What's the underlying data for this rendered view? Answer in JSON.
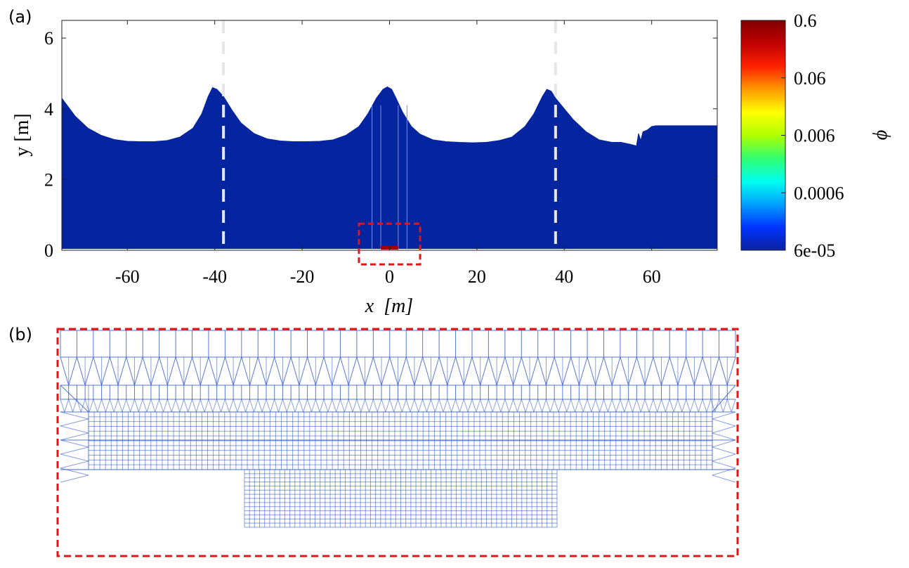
{
  "panels": {
    "a_label": "(a)",
    "b_label": "(b)"
  },
  "chart_data": [
    {
      "type": "area",
      "panel": "(a)",
      "title": "",
      "xlabel": "x  [m]",
      "ylabel": "y [m]",
      "xlim": [
        -75,
        75
      ],
      "ylim": [
        0,
        6.5
      ],
      "xticks": [
        "-60",
        "-40",
        "-20",
        "0",
        "20",
        "40",
        "60"
      ],
      "xtick_values": [
        -60,
        -40,
        -20,
        0,
        20,
        40,
        60
      ],
      "yticks": [
        "0",
        "2",
        "4",
        "6"
      ],
      "ytick_values": [
        0,
        2,
        4,
        6
      ],
      "grid": false,
      "series": [
        {
          "values_x": [
            -75,
            -72,
            -69,
            -66,
            -63,
            -60,
            -57,
            -54,
            -51,
            -48,
            -45,
            -43,
            -41.5,
            -40.5,
            -39.5,
            -38,
            -36,
            -34,
            -31,
            -28,
            -25,
            -22,
            -19,
            -16,
            -13,
            -10,
            -7,
            -5,
            -3,
            -1.5,
            -0.5,
            0.5,
            1.5,
            3,
            5,
            7,
            10,
            13,
            16,
            19,
            22,
            25,
            28,
            31,
            33,
            35,
            36,
            37,
            38,
            40,
            42,
            45,
            48,
            51,
            53,
            55,
            56.5,
            57,
            57.5,
            58,
            59,
            60,
            61,
            63,
            66,
            70,
            75
          ],
          "values_y": [
            4.3,
            3.8,
            3.45,
            3.25,
            3.13,
            3.08,
            3.07,
            3.07,
            3.1,
            3.2,
            3.45,
            3.85,
            4.35,
            4.6,
            4.55,
            4.35,
            3.95,
            3.6,
            3.3,
            3.15,
            3.09,
            3.07,
            3.07,
            3.08,
            3.12,
            3.25,
            3.5,
            3.85,
            4.3,
            4.55,
            4.62,
            4.55,
            4.3,
            3.9,
            3.5,
            3.28,
            3.12,
            3.07,
            3.05,
            3.04,
            3.05,
            3.1,
            3.2,
            3.5,
            3.85,
            4.35,
            4.55,
            4.5,
            4.3,
            4.0,
            3.7,
            3.35,
            3.12,
            3.05,
            3.05,
            3.0,
            2.95,
            3.3,
            3.1,
            3.35,
            3.4,
            3.5,
            3.52,
            3.52,
            3.52,
            3.52,
            3.52
          ]
        }
      ],
      "markers": {
        "dashed_vertical_lines_x": [
          -38,
          38
        ],
        "faint_vertical_lines_x": [
          -4,
          -2,
          2,
          4
        ],
        "body": {
          "x": [
            -2,
            2
          ],
          "y": [
            0,
            0.06
          ]
        },
        "zoom_box": {
          "x": [
            -7,
            7
          ],
          "y": [
            -0.4,
            0.75
          ]
        }
      },
      "colors": {
        "water": "#0525a0",
        "body": "#a10000",
        "dashed_line": "#e6e6e6",
        "zoom_box": "#ee1111"
      }
    },
    {
      "type": "heatmap",
      "panel": "colorbar",
      "title": "",
      "label": "ϕ",
      "scale": "log",
      "range": [
        6e-05,
        0.6
      ],
      "tick_labels": [
        "0.6",
        "0.06",
        "0.006",
        "0.0006",
        "6e-05"
      ],
      "tick_values": [
        0.6,
        0.06,
        0.006,
        0.0006,
        6e-05
      ],
      "colormap": [
        "#0a23a0",
        "#0033ff",
        "#00a0ff",
        "#00ffee",
        "#30ff70",
        "#b0ff00",
        "#ffff00",
        "#ff9900",
        "#ff2200",
        "#c00000",
        "#800000"
      ]
    },
    {
      "type": "other",
      "panel": "(b)",
      "title": "",
      "description": "",
      "mesh_color": "#3a5fcf",
      "frame_color": "#ee1111"
    }
  ]
}
